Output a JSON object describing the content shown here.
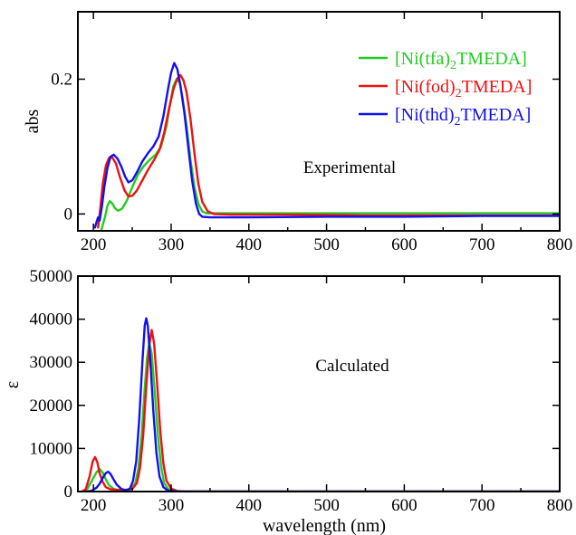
{
  "chart_data": [
    {
      "type": "line",
      "annotation": "Experimental",
      "xlabel": "",
      "ylabel": "abs",
      "xlim": [
        180,
        800
      ],
      "ylim": [
        -0.025,
        0.3
      ],
      "x_ticks": [
        "200",
        "300",
        "400",
        "500",
        "600",
        "700",
        "800"
      ],
      "y_ticks": [
        "0",
        "0.2"
      ],
      "legend_position": "top-right",
      "series": [
        {
          "name": "[Ni(tfa)2TMEDA]",
          "legend_main": "[Ni(tfa)",
          "legend_sub": "2",
          "legend_tail": "TMEDA]",
          "color": "#22cc22",
          "points": [
            [
              210,
              -0.025
            ],
            [
              215,
              -0.004
            ],
            [
              218,
              0.012
            ],
            [
              221,
              0.019
            ],
            [
              224,
              0.016
            ],
            [
              228,
              0.008
            ],
            [
              232,
              0.005
            ],
            [
              237,
              0.008
            ],
            [
              243,
              0.02
            ],
            [
              250,
              0.04
            ],
            [
              257,
              0.058
            ],
            [
              264,
              0.07
            ],
            [
              272,
              0.08
            ],
            [
              280,
              0.088
            ],
            [
              287,
              0.1
            ],
            [
              294,
              0.13
            ],
            [
              299,
              0.165
            ],
            [
              303,
              0.19
            ],
            [
              307,
              0.2
            ],
            [
              311,
              0.195
            ],
            [
              315,
              0.17
            ],
            [
              320,
              0.13
            ],
            [
              325,
              0.08
            ],
            [
              330,
              0.04
            ],
            [
              335,
              0.015
            ],
            [
              340,
              0.004
            ],
            [
              345,
              0.001
            ],
            [
              355,
              0.001
            ],
            [
              400,
              0.001
            ],
            [
              500,
              0.001
            ],
            [
              600,
              0.001
            ],
            [
              700,
              0.001
            ],
            [
              800,
              0.001
            ]
          ]
        },
        {
          "name": "[Ni(fod)2TMEDA]",
          "legend_main": "[Ni(fod)",
          "legend_sub": "2",
          "legend_tail": "TMEDA]",
          "color": "#ee1111",
          "points": [
            [
              206,
              -0.02
            ],
            [
              209,
              0.01
            ],
            [
              212,
              0.045
            ],
            [
              216,
              0.072
            ],
            [
              220,
              0.083
            ],
            [
              224,
              0.084
            ],
            [
              229,
              0.075
            ],
            [
              234,
              0.055
            ],
            [
              240,
              0.035
            ],
            [
              245,
              0.026
            ],
            [
              250,
              0.027
            ],
            [
              256,
              0.035
            ],
            [
              262,
              0.048
            ],
            [
              270,
              0.065
            ],
            [
              278,
              0.08
            ],
            [
              285,
              0.095
            ],
            [
              291,
              0.12
            ],
            [
              297,
              0.155
            ],
            [
              303,
              0.185
            ],
            [
              308,
              0.201
            ],
            [
              312,
              0.206
            ],
            [
              316,
              0.198
            ],
            [
              320,
              0.18
            ],
            [
              325,
              0.14
            ],
            [
              330,
              0.09
            ],
            [
              335,
              0.045
            ],
            [
              340,
              0.018
            ],
            [
              347,
              0.004
            ],
            [
              355,
              0
            ],
            [
              380,
              -0.001
            ],
            [
              450,
              -0.001
            ],
            [
              550,
              -0.002
            ],
            [
              650,
              -0.002
            ],
            [
              800,
              -0.002
            ]
          ]
        },
        {
          "name": "[Ni(thd)2TMEDA]",
          "legend_main": "[Ni(thd)",
          "legend_sub": "2",
          "legend_tail": "TMEDA]",
          "color": "#1111ee",
          "points": [
            [
              202,
              -0.02
            ],
            [
              204,
              -0.012
            ],
            [
              206,
              -0.005
            ],
            [
              208,
              -0.01
            ],
            [
              211,
              0.012
            ],
            [
              214,
              0.04
            ],
            [
              218,
              0.068
            ],
            [
              222,
              0.085
            ],
            [
              226,
              0.088
            ],
            [
              231,
              0.082
            ],
            [
              236,
              0.07
            ],
            [
              241,
              0.055
            ],
            [
              245,
              0.047
            ],
            [
              250,
              0.05
            ],
            [
              256,
              0.062
            ],
            [
              263,
              0.078
            ],
            [
              270,
              0.09
            ],
            [
              277,
              0.1
            ],
            [
              284,
              0.115
            ],
            [
              290,
              0.145
            ],
            [
              296,
              0.185
            ],
            [
              300,
              0.21
            ],
            [
              304,
              0.224
            ],
            [
              308,
              0.215
            ],
            [
              312,
              0.19
            ],
            [
              317,
              0.15
            ],
            [
              322,
              0.1
            ],
            [
              327,
              0.05
            ],
            [
              332,
              0.015
            ],
            [
              336,
              0
            ],
            [
              340,
              -0.004
            ],
            [
              350,
              -0.005
            ],
            [
              400,
              -0.005
            ],
            [
              500,
              -0.004
            ],
            [
              600,
              -0.004
            ],
            [
              700,
              -0.003
            ],
            [
              800,
              -0.003
            ]
          ]
        }
      ]
    },
    {
      "type": "line",
      "annotation": "Calculated",
      "xlabel": "wavelength (nm)",
      "ylabel": "ε",
      "xlim": [
        180,
        800
      ],
      "ylim": [
        0,
        50000
      ],
      "x_ticks": [
        "200",
        "300",
        "400",
        "500",
        "600",
        "700",
        "800"
      ],
      "y_ticks": [
        "0",
        "10000",
        "20000",
        "30000",
        "40000",
        "50000"
      ],
      "series": [
        {
          "name": "[Ni(tfa)2TMEDA]",
          "color": "#22cc22",
          "points": [
            [
              185,
              0
            ],
            [
              192,
              600
            ],
            [
              198,
              2500
            ],
            [
              204,
              4500
            ],
            [
              208,
              5200
            ],
            [
              212,
              4400
            ],
            [
              216,
              2800
            ],
            [
              220,
              1500
            ],
            [
              226,
              600
            ],
            [
              232,
              300
            ],
            [
              240,
              200
            ],
            [
              248,
              500
            ],
            [
              254,
              2000
            ],
            [
              258,
              5500
            ],
            [
              262,
              13000
            ],
            [
              266,
              24000
            ],
            [
              269,
              31000
            ],
            [
              272,
              34500
            ],
            [
              275,
              32000
            ],
            [
              279,
              23000
            ],
            [
              283,
              13000
            ],
            [
              287,
              6000
            ],
            [
              291,
              2000
            ],
            [
              296,
              600
            ],
            [
              302,
              150
            ],
            [
              320,
              0
            ],
            [
              800,
              0
            ]
          ]
        },
        {
          "name": "[Ni(fod)2TMEDA]",
          "color": "#ee1111",
          "points": [
            [
              185,
              0
            ],
            [
              190,
              500
            ],
            [
              195,
              3500
            ],
            [
              199,
              7000
            ],
            [
              202,
              8000
            ],
            [
              205,
              6800
            ],
            [
              208,
              4200
            ],
            [
              212,
              2200
            ],
            [
              216,
              1000
            ],
            [
              222,
              500
            ],
            [
              232,
              400
            ],
            [
              242,
              400
            ],
            [
              250,
              600
            ],
            [
              256,
              2000
            ],
            [
              260,
              5500
            ],
            [
              264,
              13000
            ],
            [
              268,
              24500
            ],
            [
              272,
              34000
            ],
            [
              275,
              37500
            ],
            [
              278,
              34500
            ],
            [
              282,
              25000
            ],
            [
              286,
              14000
            ],
            [
              290,
              6500
            ],
            [
              294,
              2500
            ],
            [
              300,
              700
            ],
            [
              308,
              100
            ],
            [
              320,
              0
            ],
            [
              800,
              0
            ]
          ]
        },
        {
          "name": "[Ni(thd)2TMEDA]",
          "color": "#1111ee",
          "points": [
            [
              190,
              0
            ],
            [
              198,
              200
            ],
            [
              204,
              900
            ],
            [
              208,
              1800
            ],
            [
              212,
              3200
            ],
            [
              216,
              4300
            ],
            [
              219,
              4600
            ],
            [
              222,
              4100
            ],
            [
              226,
              2800
            ],
            [
              230,
              1600
            ],
            [
              236,
              600
            ],
            [
              242,
              300
            ],
            [
              247,
              700
            ],
            [
              251,
              2500
            ],
            [
              255,
              7000
            ],
            [
              259,
              17000
            ],
            [
              263,
              30000
            ],
            [
              266,
              38500
            ],
            [
              268,
              40200
            ],
            [
              270,
              38500
            ],
            [
              273,
              31000
            ],
            [
              277,
              19000
            ],
            [
              281,
              9000
            ],
            [
              285,
              3500
            ],
            [
              290,
              1000
            ],
            [
              296,
              200
            ],
            [
              310,
              0
            ],
            [
              800,
              0
            ]
          ]
        }
      ]
    }
  ]
}
